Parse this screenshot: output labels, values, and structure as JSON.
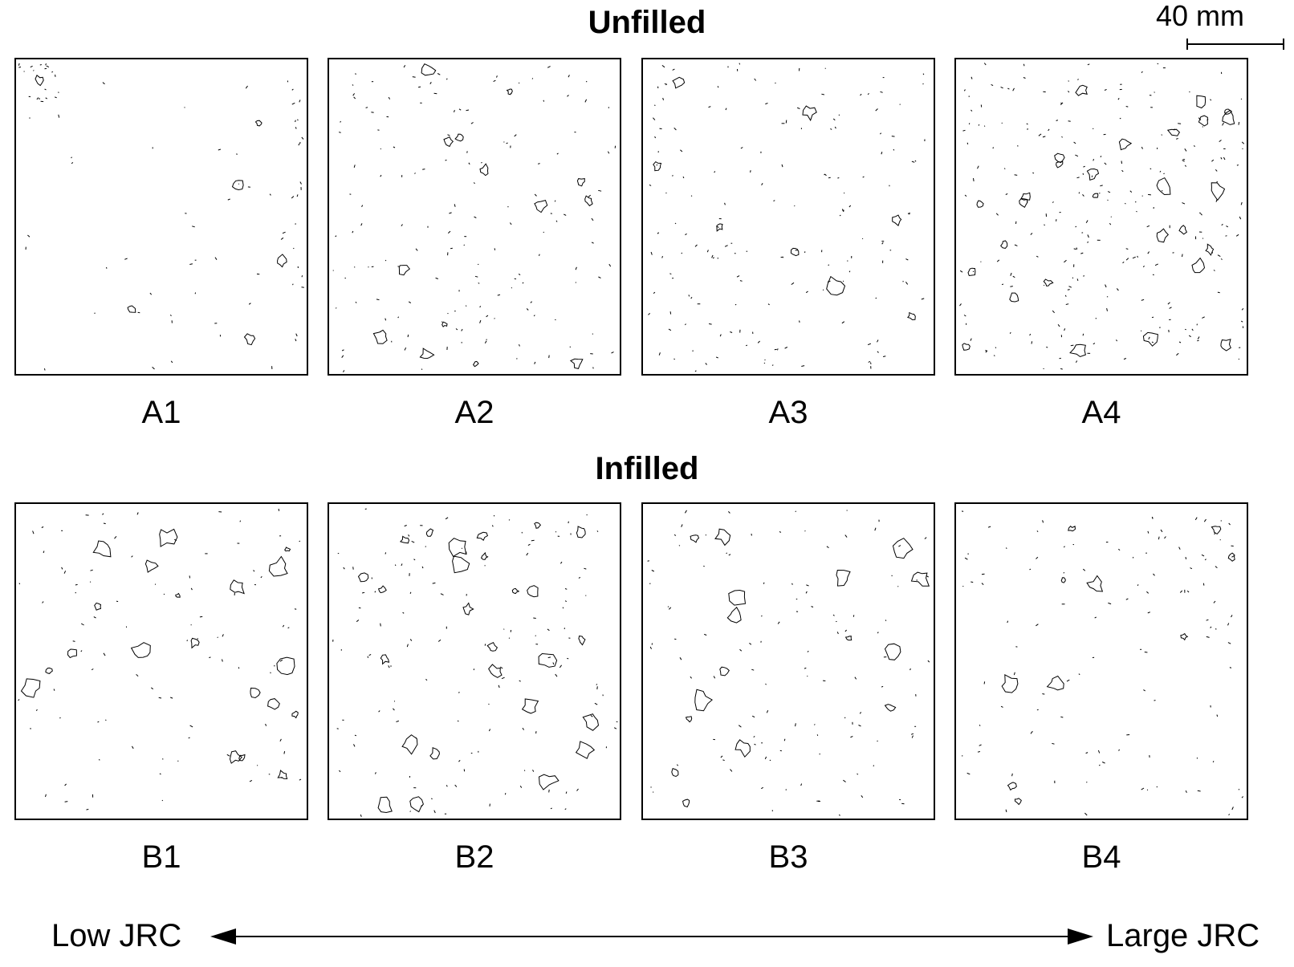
{
  "titles": {
    "top": "Unfilled",
    "bottom": "Infilled"
  },
  "scale_bar": {
    "label": "40 mm"
  },
  "panels": {
    "top": [
      "A1",
      "A2",
      "A3",
      "A4"
    ],
    "bottom": [
      "B1",
      "B2",
      "B3",
      "B4"
    ]
  },
  "axis": {
    "left_label": "Low JRC",
    "right_label": "Large JRC"
  },
  "colors": {
    "line": "#000000",
    "background": "#ffffff"
  }
}
